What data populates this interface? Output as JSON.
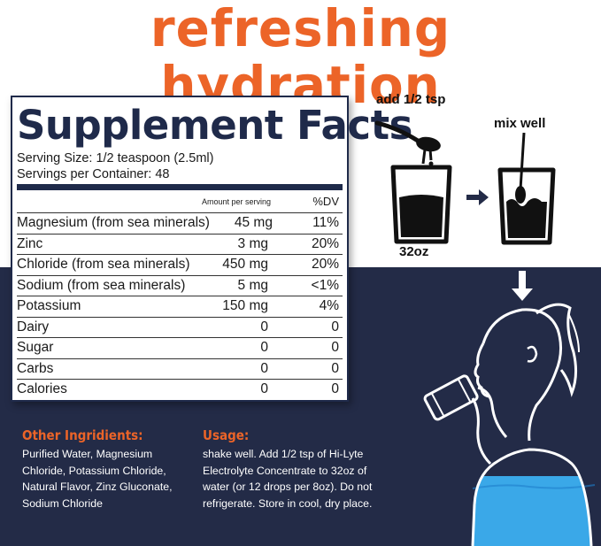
{
  "headline": "refreshing hydration",
  "facts": {
    "title": "Supplement Facts",
    "serving_size": "Serving Size: 1/2 teaspoon (2.5ml)",
    "servings_per_container": "Servings per Container: 48",
    "col_amount": "Amount per serving",
    "col_dv": "%DV",
    "rows": [
      {
        "name": "Magnesium (from sea minerals)",
        "amount": "45 mg",
        "dv": "11%"
      },
      {
        "name": "Zinc",
        "amount": "3 mg",
        "dv": "20%"
      },
      {
        "name": "Chloride (from sea minerals)",
        "amount": "450 mg",
        "dv": "20%"
      },
      {
        "name": "Sodium (from sea minerals)",
        "amount": "5 mg",
        "dv": "<1%"
      },
      {
        "name": "Potassium",
        "amount": "150 mg",
        "dv": "4%"
      },
      {
        "name": "Dairy",
        "amount": "0",
        "dv": "0"
      },
      {
        "name": "Sugar",
        "amount": "0",
        "dv": "0"
      },
      {
        "name": "Carbs",
        "amount": "0",
        "dv": "0"
      },
      {
        "name": "Calories",
        "amount": "0",
        "dv": "0"
      }
    ]
  },
  "steps": {
    "add_label": "add 1/2 tsp",
    "cup_size": "32oz",
    "mix_label": "mix well"
  },
  "other_ingredients": {
    "title": "Other Ingridients:",
    "lines": [
      "Purified Water, Magnesium",
      "Chloride, Potassium Chloride,",
      "Natural Flavor, Zinz Gluconate,",
      "Sodium Chloride"
    ]
  },
  "usage": {
    "title": "Usage:",
    "lines": [
      "shake well. Add 1/2 tsp of Hi-Lyte",
      "Electrolyte Concentrate to 32oz of",
      "water (or 12 drops per 8oz). Do not",
      "refrigerate. Store in cool, dry place."
    ]
  },
  "colors": {
    "orange": "#ec6428",
    "navy": "#232b47",
    "water_blue": "#3aa8e8"
  },
  "icons": [
    "spoon-icon",
    "cup-icon",
    "arrow-right-icon",
    "arrow-down-icon",
    "drinking-woman-icon"
  ]
}
